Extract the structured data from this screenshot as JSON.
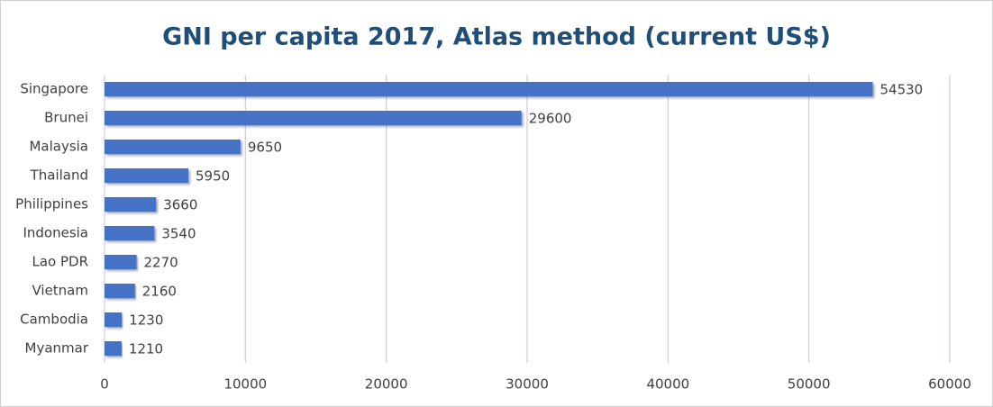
{
  "chart_data": {
    "type": "bar",
    "orientation": "horizontal",
    "title": "GNI per capita 2017, Atlas method (current US$)",
    "categories": [
      "Singapore",
      "Brunei",
      "Malaysia",
      "Thailand",
      "Philippines",
      "Indonesia",
      "Lao PDR",
      "Vietnam",
      "Cambodia",
      "Myanmar"
    ],
    "values": [
      54530,
      29600,
      9650,
      5950,
      3660,
      3540,
      2270,
      2160,
      1230,
      1210
    ],
    "color": "#4472c4",
    "xlim": [
      0,
      60000
    ],
    "xticks": [
      0,
      10000,
      20000,
      30000,
      40000,
      50000,
      60000
    ],
    "grid": true
  }
}
